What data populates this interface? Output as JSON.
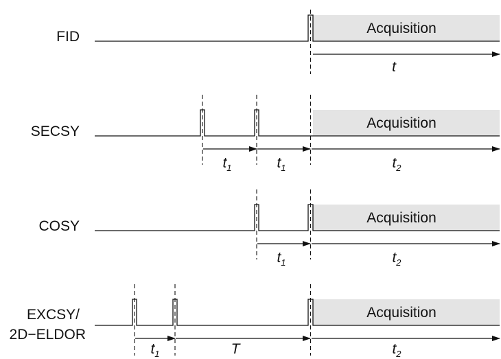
{
  "colors": {
    "line": "#111111",
    "acquisition_fill": "#e4e4e4",
    "background": "#ffffff"
  },
  "sequences": [
    {
      "label": "FID",
      "acquisition_label": "Acquisition",
      "intervals": [
        {
          "symbol": "t",
          "subscript": ""
        }
      ]
    },
    {
      "label": "SECSY",
      "acquisition_label": "Acquisition",
      "intervals": [
        {
          "symbol": "t",
          "subscript": "1"
        },
        {
          "symbol": "t",
          "subscript": "1"
        },
        {
          "symbol": "t",
          "subscript": "2"
        }
      ]
    },
    {
      "label": "COSY",
      "acquisition_label": "Acquisition",
      "intervals": [
        {
          "symbol": "t",
          "subscript": "1"
        },
        {
          "symbol": "t",
          "subscript": "2"
        }
      ]
    },
    {
      "label_line1": "EXCSY/",
      "label_line2": "2D−ELDOR",
      "acquisition_label": "Acquisition",
      "intervals": [
        {
          "symbol": "t",
          "subscript": "1"
        },
        {
          "symbol": "T",
          "subscript": ""
        },
        {
          "symbol": "t",
          "subscript": "2"
        }
      ]
    }
  ]
}
